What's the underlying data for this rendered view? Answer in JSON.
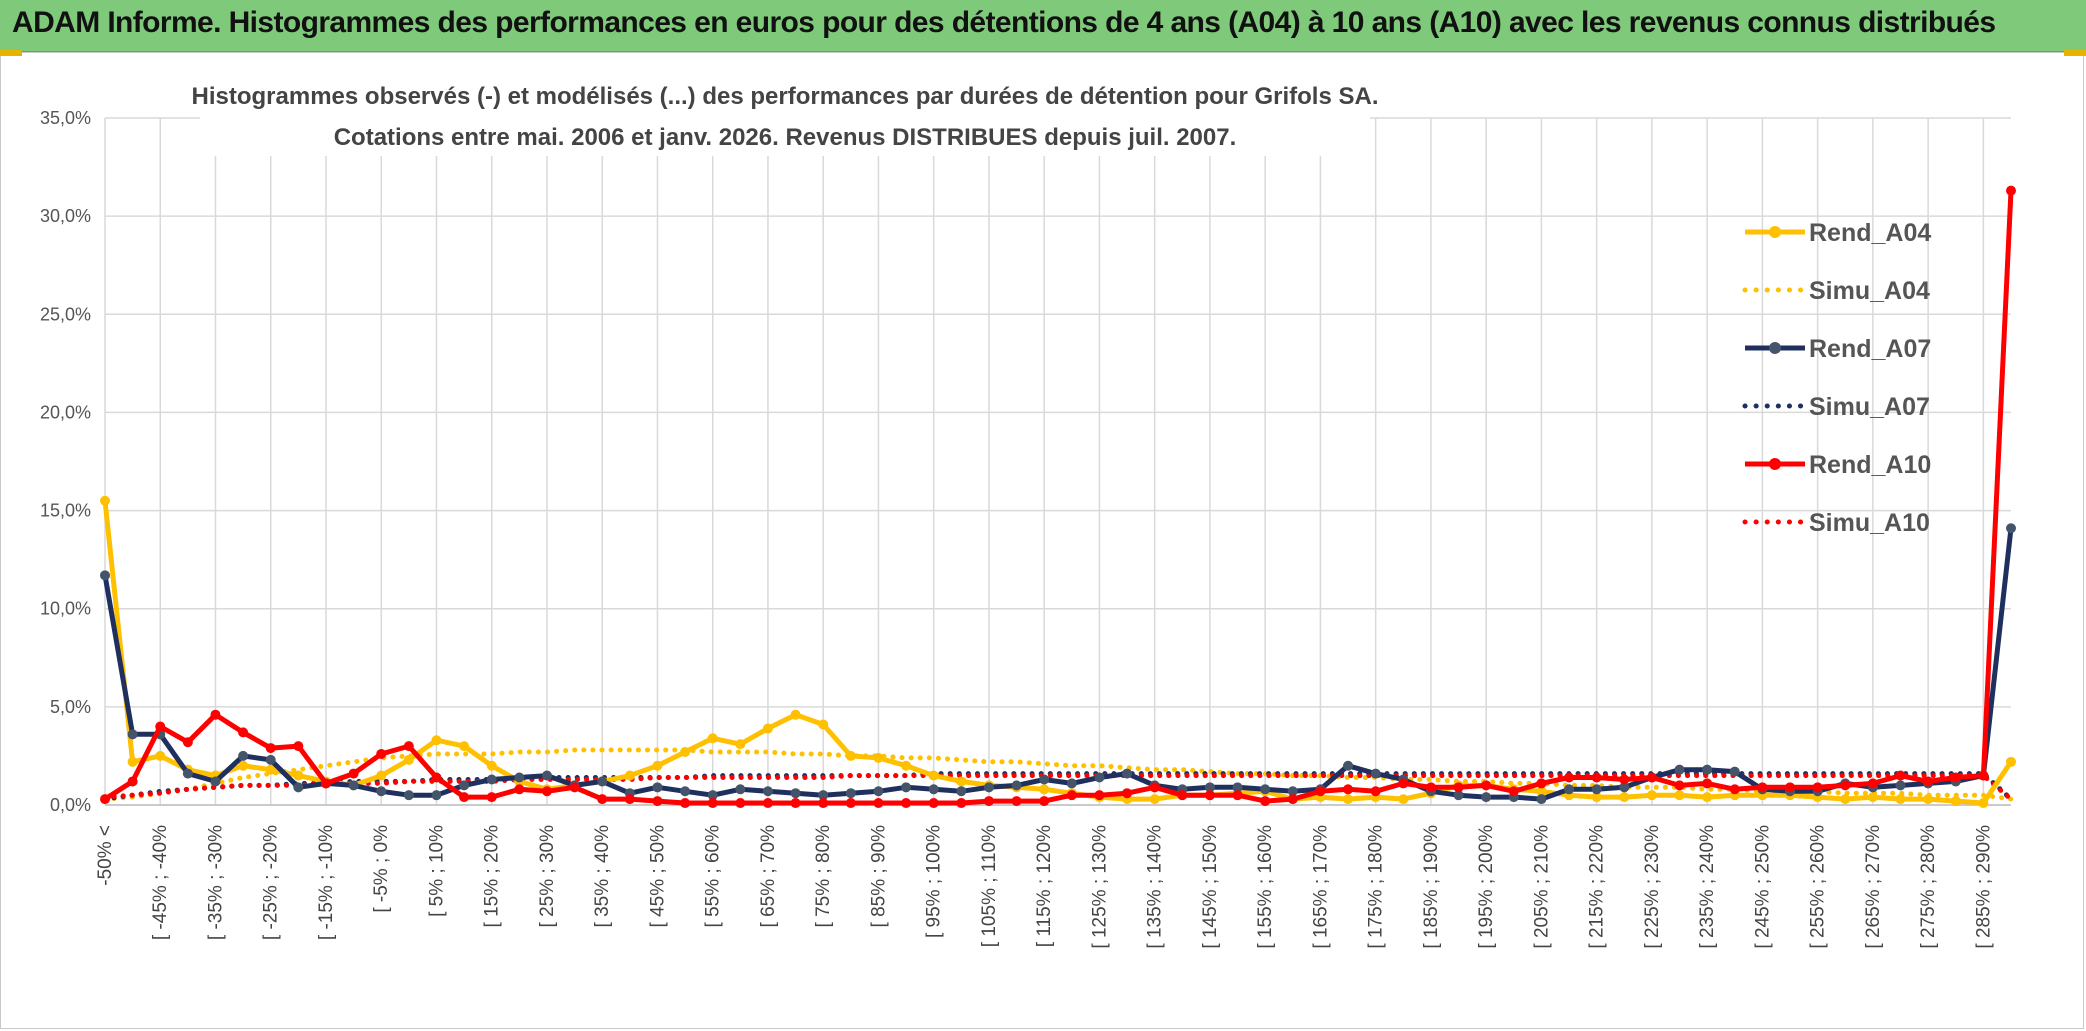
{
  "header": {
    "title": "ADAM Informe. Histogrammes des performances en euros pour des détentions de 4 ans (A04) à 10 ans (A10) avec les revenus connus distribués"
  },
  "colors": {
    "a04": "#ffc000",
    "a07": "#1f2f5e",
    "a07_marker": "#44546a",
    "a10": "#ff0000",
    "header_bg": "#7fc97a"
  },
  "chart_data": {
    "type": "line",
    "title_line1": "Histogrammes observés (-) et modélisés (...) des performances par durées de détention pour Grifols SA.",
    "title_line2": "Cotations entre mai. 2006 et janv. 2026. Revenus DISTRIBUES depuis juil. 2007.",
    "ylim": [
      0,
      35
    ],
    "yticks": [
      "0,0%",
      "5,0%",
      "10,0%",
      "15,0%",
      "20,0%",
      "25,0%",
      "30,0%",
      "35,0%"
    ],
    "category_labels": [
      "-50% <",
      "[ -45% ; -40%",
      "[ -35% ; -30%",
      "[ -25% ; -20%",
      "[ -15% ; -10%",
      "[ -5% ; 0%",
      "[ 5% ; 10%",
      "[ 15% ; 20%",
      "[ 25% ; 30%",
      "[ 35% ; 40%",
      "[ 45% ; 50%",
      "[ 55% ; 60%",
      "[ 65% ; 70%",
      "[ 75% ; 80%",
      "[ 85% ; 90%",
      "[ 95% ; 100%",
      "[ 105% ; 110%",
      "[ 115% ; 120%",
      "[ 125% ; 130%",
      "[ 135% ; 140%",
      "[ 145% ; 150%",
      "[ 155% ; 160%",
      "[ 165% ; 170%",
      "[ 175% ; 180%",
      "[ 185% ; 190%",
      "[ 195% ; 200%",
      "[ 205% ; 210%",
      "[ 215% ; 220%",
      "[ 225% ; 230%",
      "[ 235% ; 240%",
      "[ 245% ; 250%",
      "[ 255% ; 260%",
      "[ 265% ; 270%",
      "[ 275% ; 280%",
      "[ 285% ; 290%"
    ],
    "n_points": 70,
    "series": [
      {
        "name": "Rend_A04",
        "style": "solid",
        "color": "#ffc000",
        "values": [
          15.5,
          2.2,
          2.5,
          1.8,
          1.5,
          2.0,
          1.8,
          1.5,
          1.2,
          1.0,
          1.5,
          2.3,
          3.3,
          3.0,
          2.0,
          1.2,
          0.8,
          1.0,
          1.2,
          1.5,
          2.0,
          2.7,
          3.4,
          3.1,
          3.9,
          4.6,
          4.1,
          2.5,
          2.4,
          2.0,
          1.5,
          1.2,
          1.0,
          0.9,
          0.8,
          0.6,
          0.4,
          0.3,
          0.3,
          0.5,
          0.5,
          0.6,
          0.7,
          0.3,
          0.4,
          0.3,
          0.4,
          0.3,
          0.6,
          1.0,
          1.0,
          0.8,
          0.7,
          0.5,
          0.4,
          0.4,
          0.5,
          0.5,
          0.4,
          0.5,
          0.5,
          0.5,
          0.4,
          0.3,
          0.4,
          0.3,
          0.3,
          0.2,
          0.1,
          2.2
        ]
      },
      {
        "name": "Simu_A04",
        "style": "dotted",
        "color": "#ffc000",
        "values": [
          0.3,
          0.4,
          0.6,
          0.8,
          1.1,
          1.4,
          1.6,
          1.8,
          2.0,
          2.2,
          2.4,
          2.5,
          2.6,
          2.6,
          2.6,
          2.7,
          2.7,
          2.8,
          2.8,
          2.8,
          2.8,
          2.8,
          2.7,
          2.7,
          2.7,
          2.6,
          2.6,
          2.5,
          2.5,
          2.4,
          2.4,
          2.3,
          2.2,
          2.2,
          2.1,
          2.0,
          2.0,
          1.9,
          1.8,
          1.8,
          1.7,
          1.6,
          1.6,
          1.5,
          1.5,
          1.4,
          1.4,
          1.3,
          1.3,
          1.2,
          1.2,
          1.1,
          1.1,
          1.0,
          1.0,
          0.9,
          0.9,
          0.9,
          0.8,
          0.8,
          0.7,
          0.7,
          0.7,
          0.6,
          0.6,
          0.6,
          0.5,
          0.5,
          0.5,
          0.3
        ]
      },
      {
        "name": "Rend_A07",
        "style": "solid",
        "color": "#1f2f5e",
        "values": [
          11.7,
          3.6,
          3.6,
          1.6,
          1.2,
          2.5,
          2.3,
          0.9,
          1.1,
          1.0,
          0.7,
          0.5,
          0.5,
          1.0,
          1.3,
          1.4,
          1.5,
          1.0,
          1.2,
          0.6,
          0.9,
          0.7,
          0.5,
          0.8,
          0.7,
          0.6,
          0.5,
          0.6,
          0.7,
          0.9,
          0.8,
          0.7,
          0.9,
          1.0,
          1.3,
          1.1,
          1.4,
          1.6,
          1.0,
          0.8,
          0.9,
          0.9,
          0.8,
          0.7,
          0.8,
          2.0,
          1.6,
          1.3,
          0.7,
          0.5,
          0.4,
          0.4,
          0.3,
          0.8,
          0.8,
          0.9,
          1.4,
          1.8,
          1.8,
          1.7,
          0.8,
          0.7,
          0.7,
          1.1,
          0.9,
          1.0,
          1.1,
          1.2,
          1.5,
          14.1
        ]
      },
      {
        "name": "Simu_A07",
        "style": "dotted",
        "color": "#1f2f5e",
        "values": [
          0.3,
          0.5,
          0.7,
          0.8,
          0.9,
          1.0,
          1.0,
          1.1,
          1.1,
          1.2,
          1.2,
          1.2,
          1.3,
          1.3,
          1.3,
          1.3,
          1.4,
          1.4,
          1.4,
          1.4,
          1.4,
          1.4,
          1.5,
          1.5,
          1.5,
          1.5,
          1.5,
          1.5,
          1.5,
          1.5,
          1.6,
          1.6,
          1.6,
          1.6,
          1.6,
          1.6,
          1.6,
          1.6,
          1.6,
          1.6,
          1.6,
          1.6,
          1.6,
          1.6,
          1.6,
          1.6,
          1.6,
          1.6,
          1.6,
          1.6,
          1.6,
          1.6,
          1.6,
          1.6,
          1.6,
          1.6,
          1.6,
          1.6,
          1.6,
          1.6,
          1.6,
          1.6,
          1.6,
          1.6,
          1.6,
          1.6,
          1.6,
          1.6,
          1.6,
          0.3
        ]
      },
      {
        "name": "Rend_A10",
        "style": "solid",
        "color": "#ff0000",
        "values": [
          0.3,
          1.2,
          4.0,
          3.2,
          4.6,
          3.7,
          2.9,
          3.0,
          1.1,
          1.6,
          2.6,
          3.0,
          1.4,
          0.4,
          0.4,
          0.8,
          0.7,
          0.9,
          0.3,
          0.3,
          0.2,
          0.1,
          0.1,
          0.1,
          0.1,
          0.1,
          0.1,
          0.1,
          0.1,
          0.1,
          0.1,
          0.1,
          0.2,
          0.2,
          0.2,
          0.5,
          0.5,
          0.6,
          0.9,
          0.5,
          0.5,
          0.5,
          0.2,
          0.3,
          0.7,
          0.8,
          0.7,
          1.1,
          0.9,
          0.9,
          1.0,
          0.7,
          1.1,
          1.4,
          1.4,
          1.3,
          1.4,
          1.0,
          1.1,
          0.8,
          0.9,
          0.9,
          0.9,
          1.0,
          1.1,
          1.5,
          1.2,
          1.4,
          1.5,
          31.3
        ]
      },
      {
        "name": "Simu_A10",
        "style": "dotted",
        "color": "#ff0000",
        "values": [
          0.4,
          0.5,
          0.6,
          0.8,
          0.9,
          1.0,
          1.0,
          1.0,
          1.1,
          1.1,
          1.1,
          1.2,
          1.2,
          1.2,
          1.2,
          1.3,
          1.3,
          1.3,
          1.3,
          1.3,
          1.4,
          1.4,
          1.4,
          1.4,
          1.4,
          1.4,
          1.4,
          1.5,
          1.5,
          1.5,
          1.5,
          1.5,
          1.5,
          1.5,
          1.5,
          1.5,
          1.5,
          1.5,
          1.5,
          1.5,
          1.5,
          1.5,
          1.5,
          1.5,
          1.5,
          1.5,
          1.5,
          1.5,
          1.5,
          1.5,
          1.5,
          1.5,
          1.5,
          1.5,
          1.5,
          1.5,
          1.5,
          1.5,
          1.5,
          1.5,
          1.5,
          1.5,
          1.5,
          1.5,
          1.5,
          1.5,
          1.5,
          1.5,
          1.5,
          0.3
        ]
      }
    ],
    "legend": {
      "position": "right",
      "items": [
        {
          "label": "Rend_A04",
          "style": "solid",
          "color": "#ffc000"
        },
        {
          "label": "Simu_A04",
          "style": "dotted",
          "color": "#ffc000"
        },
        {
          "label": "Rend_A07",
          "style": "solid",
          "color": "#1f2f5e"
        },
        {
          "label": "Simu_A07",
          "style": "dotted",
          "color": "#1f2f5e"
        },
        {
          "label": "Rend_A10",
          "style": "solid",
          "color": "#ff0000"
        },
        {
          "label": "Simu_A10",
          "style": "dotted",
          "color": "#ff0000"
        }
      ]
    }
  }
}
